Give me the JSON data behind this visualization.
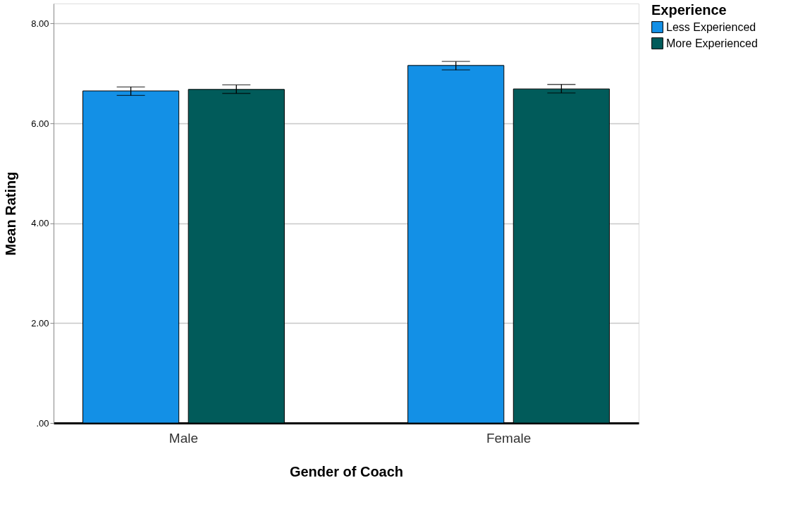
{
  "chart_data": {
    "type": "bar",
    "xlabel": "Gender of Coach",
    "ylabel": "Mean Rating",
    "legend_title": "Experience",
    "categories": [
      "Male",
      "Female"
    ],
    "series": [
      {
        "name": "Less Experienced",
        "color": "#1390e6",
        "values": [
          6.65,
          7.16
        ],
        "errors": [
          [
            6.56,
            6.73
          ],
          [
            7.07,
            7.24
          ]
        ]
      },
      {
        "name": "More Experienced",
        "color": "#015b5a",
        "values": [
          6.68,
          6.69
        ],
        "errors": [
          [
            6.6,
            6.77
          ],
          [
            6.61,
            6.78
          ]
        ]
      }
    ],
    "ylim": [
      0,
      8.4
    ],
    "yticks": [
      {
        "value": 0,
        "label": ".00"
      },
      {
        "value": 2,
        "label": "2.00"
      },
      {
        "value": 4,
        "label": "4.00"
      },
      {
        "value": 6,
        "label": "6.00"
      },
      {
        "value": 8,
        "label": "8.00"
      }
    ],
    "grid": "y",
    "legend": "top right"
  }
}
